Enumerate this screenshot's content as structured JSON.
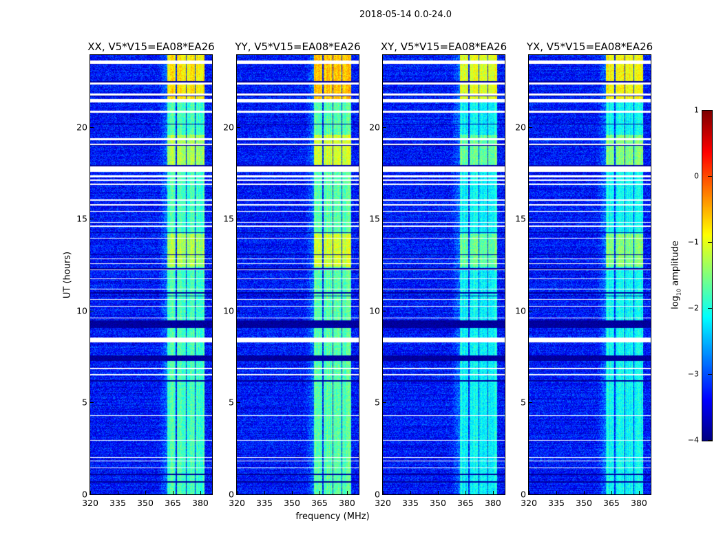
{
  "figure": {
    "suptitle": "2018-05-14 0.0-24.0",
    "ylabel": "UT (hours)",
    "xlabel": "frequency (MHz)",
    "colorbar": {
      "label_prefix": "log",
      "label_sub": "10",
      "label_suffix": " amplitude",
      "range": [
        -4,
        1
      ],
      "ticks": [
        "1",
        "0",
        "−1",
        "−2",
        "−3",
        "−4"
      ],
      "tick_values": [
        1,
        0,
        -1,
        -2,
        -3,
        -4
      ],
      "colormap": "jet"
    }
  },
  "chart_data": {
    "type": "heatmap",
    "xlim": [
      320,
      386.4
    ],
    "ylim": [
      0,
      23.93
    ],
    "xticks": [
      320,
      335,
      350,
      365,
      380
    ],
    "xtick_labels": [
      "320",
      "335",
      "350",
      "365",
      "380"
    ],
    "yticks": [
      0,
      5,
      10,
      15,
      20
    ],
    "ytick_labels": [
      "0",
      "5",
      "10",
      "15",
      "20"
    ],
    "background_level": -3.3,
    "rfi_bands_mhz": [
      [
        362,
        366.3
      ],
      [
        366.9,
        371.8
      ],
      [
        372.3,
        376.8
      ],
      [
        377.3,
        381.9
      ]
    ],
    "flagged_hours": [
      [
        23.45,
        23.65
      ],
      [
        22.35,
        22.45
      ],
      [
        21.75,
        21.85
      ],
      [
        21.35,
        21.55
      ],
      [
        20.8,
        20.9
      ],
      [
        19.3,
        19.4
      ],
      [
        19.05,
        19.12
      ],
      [
        17.6,
        17.88
      ],
      [
        17.3,
        17.38
      ],
      [
        17.08,
        17.16
      ],
      [
        16.86,
        16.94
      ],
      [
        16.02,
        16.1
      ],
      [
        15.76,
        15.84
      ],
      [
        15.4,
        15.46
      ],
      [
        14.8,
        14.86
      ],
      [
        14.6,
        14.67
      ],
      [
        13.94,
        14.0
      ],
      [
        12.82,
        12.88
      ],
      [
        12.55,
        12.61
      ],
      [
        12.22,
        12.28
      ],
      [
        11.73,
        11.79
      ],
      [
        11.17,
        11.23
      ],
      [
        10.61,
        10.67
      ],
      [
        10.23,
        10.29
      ],
      [
        9.6,
        9.66
      ],
      [
        8.3,
        8.55
      ],
      [
        6.49,
        6.56
      ],
      [
        6.85,
        6.9
      ],
      [
        4.28,
        4.33
      ],
      [
        2.93,
        2.99
      ],
      [
        1.99,
        2.05
      ],
      [
        1.81,
        1.87
      ],
      [
        1.43,
        1.49
      ]
    ],
    "dark_hours": [
      [
        22.45,
        22.52
      ],
      [
        21.7,
        21.75
      ],
      [
        20.15,
        20.22
      ],
      [
        19.0,
        19.05
      ],
      [
        17.88,
        17.95
      ],
      [
        14.24,
        14.3
      ],
      [
        13.04,
        13.1
      ],
      [
        12.28,
        12.34
      ],
      [
        10.97,
        11.03
      ],
      [
        10.79,
        10.85
      ],
      [
        9.1,
        9.5
      ],
      [
        7.3,
        7.6
      ],
      [
        6.15,
        6.25
      ],
      [
        1.07,
        1.13
      ],
      [
        0.67,
        0.73
      ]
    ],
    "panels": [
      {
        "title": "XX, V5*V15=EA08*EA26",
        "levels": {
          "top": -0.8,
          "mid": -1.3,
          "low": -1.8
        }
      },
      {
        "title": "YY, V5*V15=EA08*EA26",
        "levels": {
          "top": -0.6,
          "mid": -1.1,
          "low": -1.7
        }
      },
      {
        "title": "XY, V5*V15=EA08*EA26",
        "levels": {
          "top": -1.0,
          "mid": -1.6,
          "low": -2.1
        }
      },
      {
        "title": "YX, V5*V15=EA08*EA26",
        "levels": {
          "top": -0.9,
          "mid": -1.5,
          "low": -2.1
        }
      }
    ]
  }
}
